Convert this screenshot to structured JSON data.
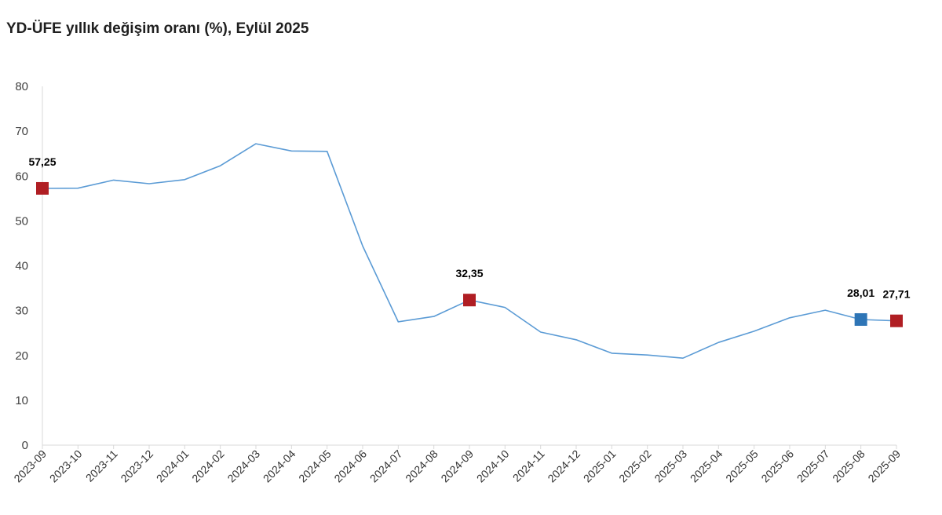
{
  "title": "YD-ÜFE yıllık değişim oranı (%), Eylül 2025",
  "colors": {
    "line": "#5b9bd5",
    "marker_red": "#b01e23",
    "marker_blue": "#2e75b6",
    "axis": "#d9d9d9"
  },
  "chart_data": {
    "type": "line",
    "title": "YD-ÜFE yıllık değişim oranı (%), Eylül 2025",
    "xlabel": "",
    "ylabel": "",
    "ylim": [
      0,
      80
    ],
    "yticks": [
      0,
      10,
      20,
      30,
      40,
      50,
      60,
      70,
      80
    ],
    "grid": false,
    "legend": "none",
    "categories": [
      "2023-09",
      "2023-10",
      "2023-11",
      "2023-12",
      "2024-01",
      "2024-02",
      "2024-03",
      "2024-04",
      "2024-05",
      "2024-06",
      "2024-07",
      "2024-08",
      "2024-09",
      "2024-10",
      "2024-11",
      "2024-12",
      "2025-01",
      "2025-02",
      "2025-03",
      "2025-04",
      "2025-05",
      "2025-06",
      "2025-07",
      "2025-08",
      "2025-09"
    ],
    "series": [
      {
        "values": [
          57.25,
          57.3,
          59.1,
          58.3,
          59.2,
          62.3,
          67.2,
          65.6,
          65.5,
          44.4,
          27.5,
          28.7,
          32.35,
          30.7,
          25.2,
          23.5,
          20.5,
          20.1,
          19.4,
          22.9,
          25.4,
          28.4,
          30.1,
          28.01,
          27.71
        ]
      }
    ],
    "markers": [
      {
        "index": 0,
        "color": "red",
        "label": "57,25"
      },
      {
        "index": 12,
        "color": "red",
        "label": "32,35"
      },
      {
        "index": 23,
        "color": "blue",
        "label": "28,01"
      },
      {
        "index": 24,
        "color": "red",
        "label": "27,71"
      }
    ]
  }
}
